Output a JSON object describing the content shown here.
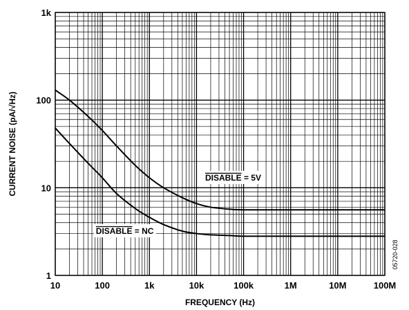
{
  "chart_data": {
    "type": "line",
    "xlabel": "FREQUENCY (Hz)",
    "ylabel": "CURRENT NOISE (pA/√Hz)",
    "x_scale": "log",
    "y_scale": "log",
    "xlim": [
      10,
      100000000
    ],
    "ylim": [
      1,
      1000
    ],
    "x_ticks": [
      10,
      100,
      1000,
      10000,
      100000,
      1000000,
      10000000,
      100000000
    ],
    "x_tick_labels": [
      "10",
      "100",
      "1k",
      "10k",
      "100k",
      "1M",
      "10M",
      "100M"
    ],
    "y_ticks": [
      1,
      10,
      100,
      1000
    ],
    "y_tick_labels": [
      "1",
      "10",
      "100",
      "1k"
    ],
    "grid": true,
    "series": [
      {
        "name": "DISABLE = 5V",
        "x": [
          10,
          20,
          50,
          100,
          200,
          500,
          1000,
          2000,
          5000,
          10000,
          20000,
          50000,
          100000,
          1000000,
          10000000,
          100000000
        ],
        "y": [
          130,
          100,
          65,
          45,
          30,
          18,
          13,
          10,
          7.7,
          6.6,
          6.0,
          5.7,
          5.6,
          5.6,
          5.6,
          5.6
        ]
      },
      {
        "name": "DISABLE = NC",
        "x": [
          10,
          20,
          50,
          100,
          200,
          500,
          1000,
          2000,
          5000,
          10000,
          20000,
          50000,
          100000,
          1000000,
          10000000,
          100000000
        ],
        "y": [
          48,
          32,
          19,
          13,
          8.6,
          5.8,
          4.6,
          3.8,
          3.2,
          3.0,
          2.9,
          2.85,
          2.8,
          2.8,
          2.8,
          2.8
        ]
      }
    ],
    "annotations": [
      {
        "label": "DISABLE",
        "suffix": " = 5V",
        "overbar": true,
        "x": 60000,
        "y": 13
      },
      {
        "label": "DISABLE",
        "suffix": " = NC",
        "overbar": true,
        "x": 300,
        "y": 3.2
      }
    ],
    "figure_id": "05720-028"
  }
}
